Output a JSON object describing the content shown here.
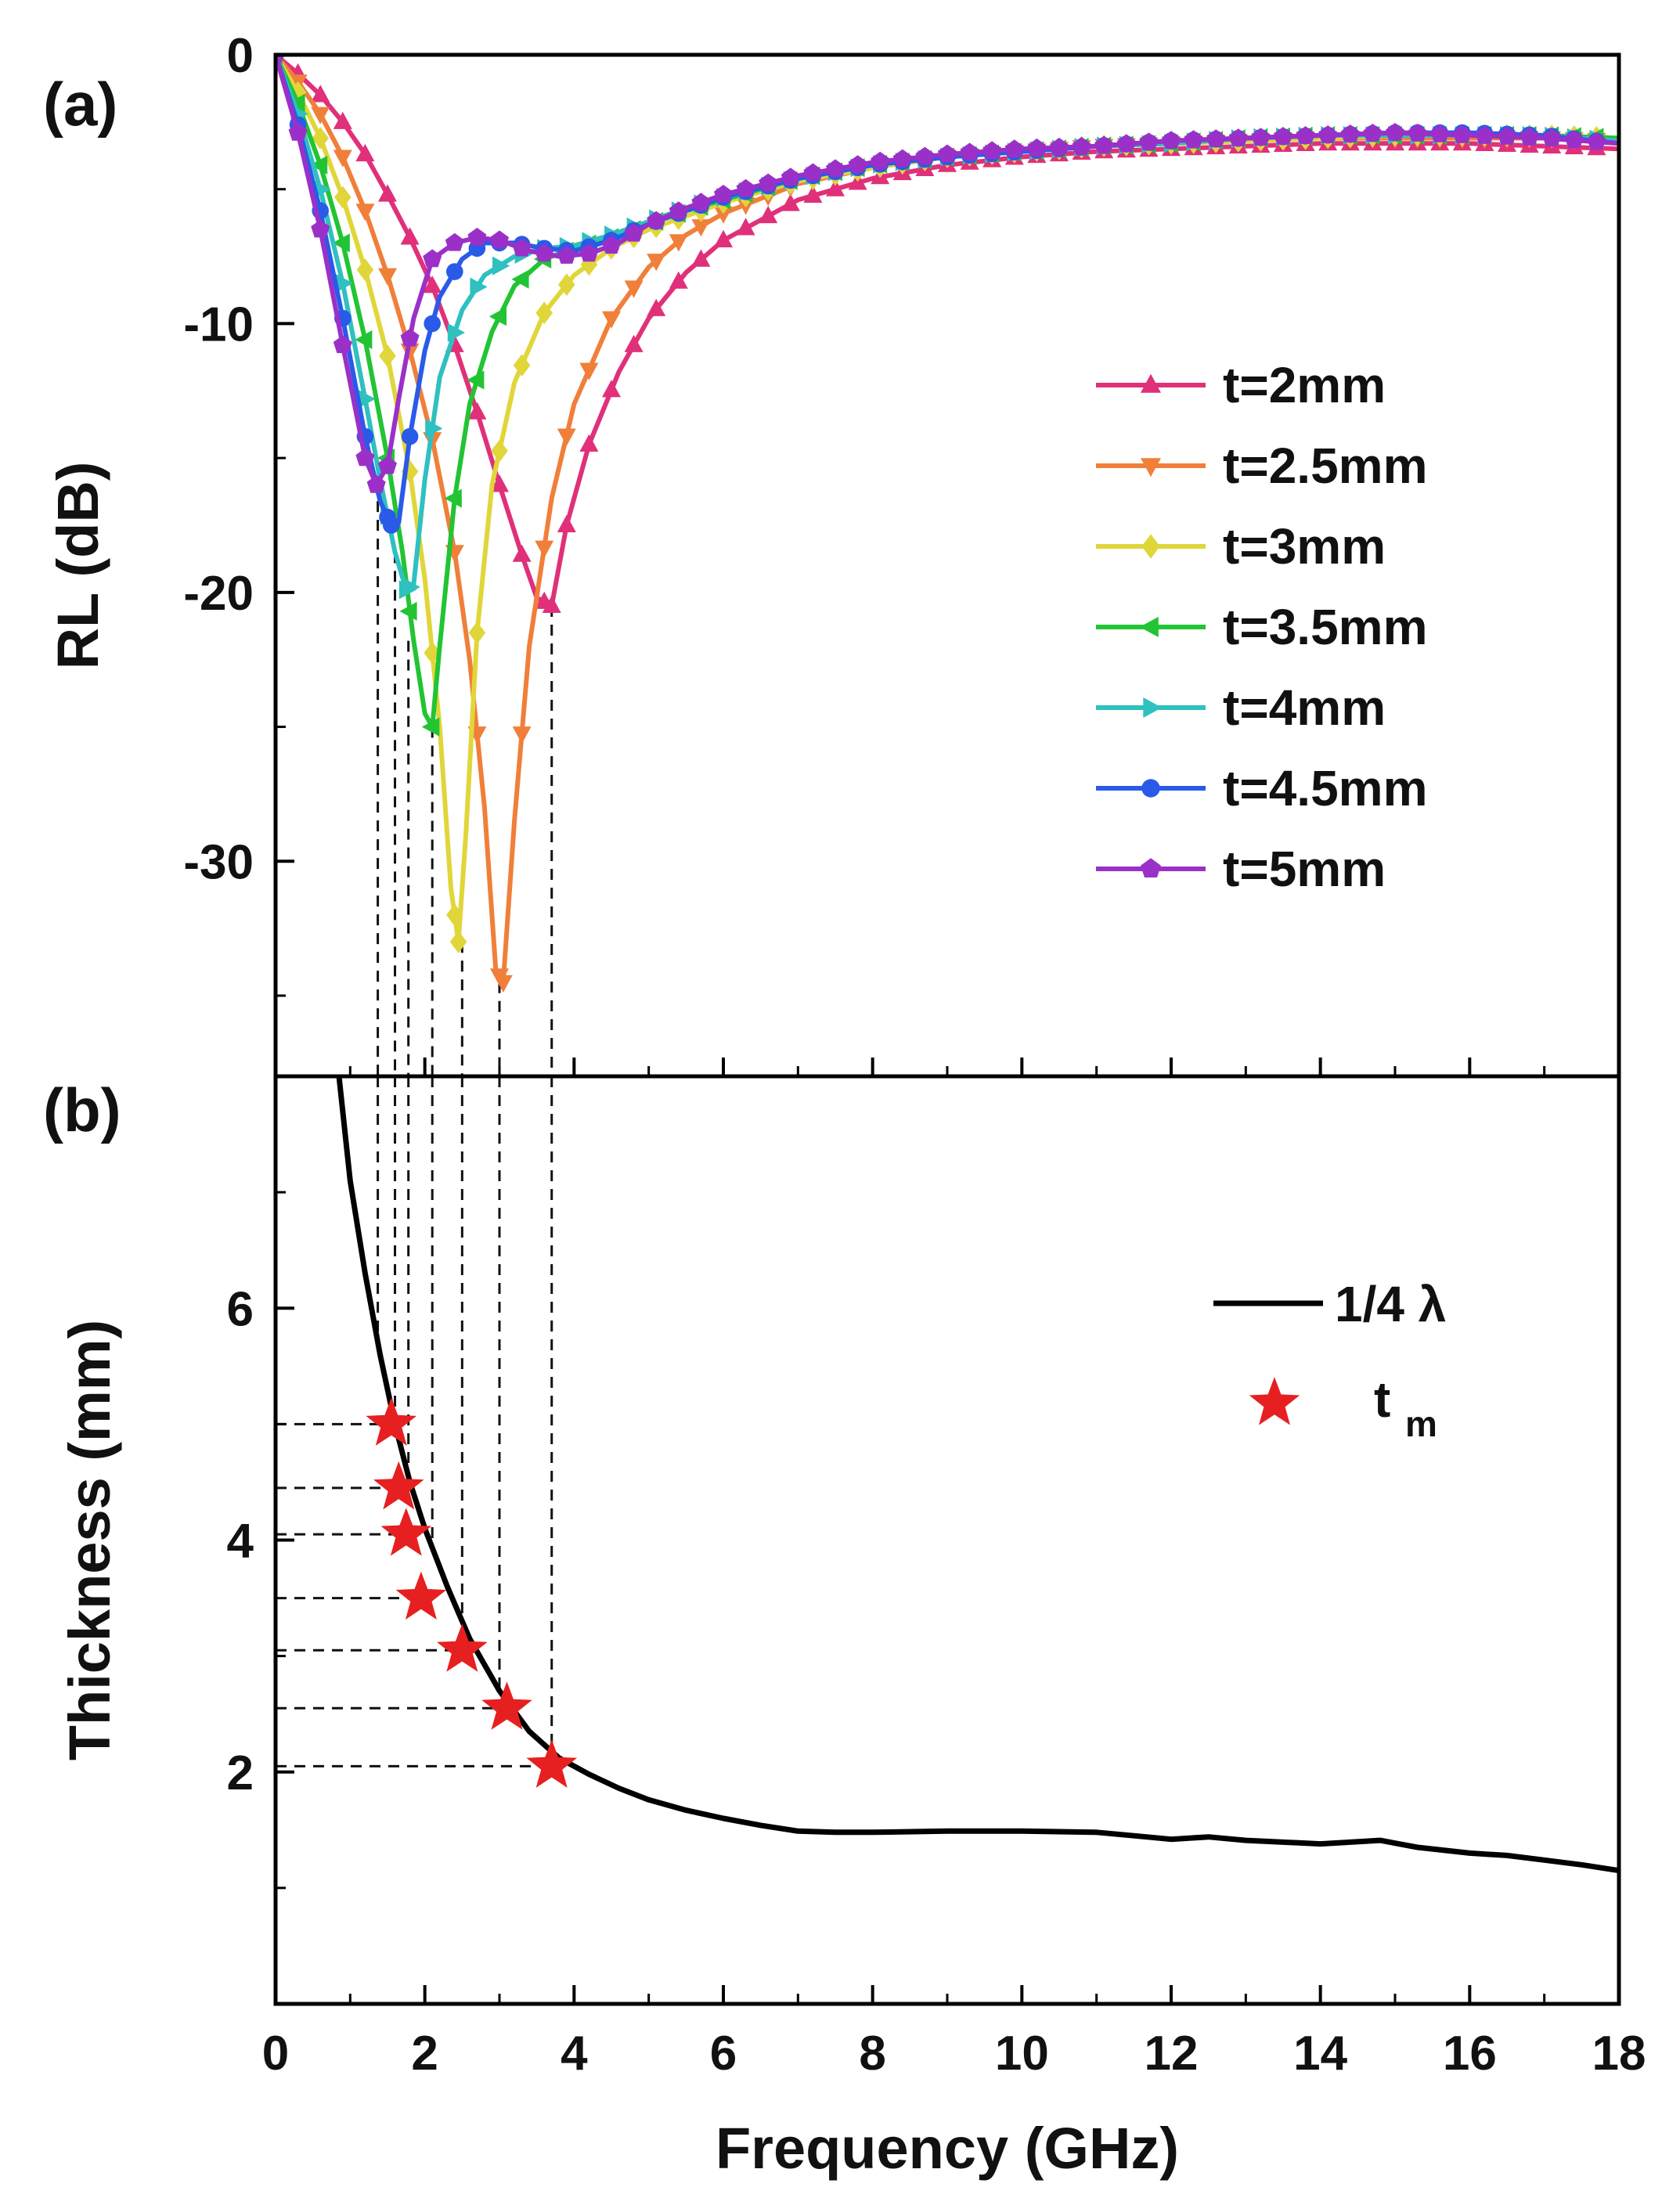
{
  "chart_data": [
    {
      "panel_label": "(a)",
      "type": "line",
      "ylabel": "RL (dB)",
      "xlim": [
        0,
        18
      ],
      "ylim": [
        -38,
        0
      ],
      "yticks": [
        0,
        -10,
        -20,
        -30
      ],
      "grid": false,
      "legend_position": "right-middle",
      "series": [
        {
          "name": "t=2mm",
          "color": "#e0307a",
          "marker": "triangle-up",
          "x": [
            0,
            0.3,
            0.6,
            0.9,
            1.2,
            1.5,
            1.8,
            2.1,
            2.4,
            2.7,
            3.0,
            3.3,
            3.5,
            3.7,
            3.9,
            4.2,
            4.6,
            5.0,
            5.5,
            6.0,
            7.0,
            8.0,
            9.0,
            10.0,
            11.0,
            12.0,
            13.0,
            14.0,
            15.0,
            16.0,
            17.0,
            18.0
          ],
          "y": [
            0,
            -0.7,
            -1.5,
            -2.5,
            -3.7,
            -5.2,
            -6.8,
            -8.6,
            -10.8,
            -13.3,
            -16.0,
            -18.6,
            -20.2,
            -20.5,
            -17.5,
            -14.5,
            -11.8,
            -9.8,
            -8.1,
            -6.9,
            -5.4,
            -4.6,
            -4.1,
            -3.8,
            -3.6,
            -3.5,
            -3.4,
            -3.3,
            -3.3,
            -3.3,
            -3.4,
            -3.5
          ]
        },
        {
          "name": "t=2.5mm",
          "color": "#f07f3a",
          "marker": "triangle-down",
          "x": [
            0,
            0.3,
            0.6,
            0.9,
            1.2,
            1.5,
            1.8,
            2.1,
            2.4,
            2.6,
            2.8,
            2.95,
            3.05,
            3.2,
            3.4,
            3.7,
            4.0,
            4.5,
            5.0,
            5.5,
            6.0,
            7.0,
            8.0,
            9.0,
            10.0,
            11.0,
            12.0,
            13.0,
            14.0,
            15.0,
            16.0,
            17.0,
            18.0
          ],
          "y": [
            0,
            -1.0,
            -2.2,
            -3.8,
            -5.8,
            -8.2,
            -11.0,
            -14.3,
            -18.5,
            -22.5,
            -28.0,
            -34.0,
            -34.5,
            -28.5,
            -22.0,
            -16.5,
            -13.0,
            -9.8,
            -7.9,
            -6.7,
            -5.9,
            -4.8,
            -4.2,
            -3.8,
            -3.6,
            -3.4,
            -3.3,
            -3.2,
            -3.1,
            -3.1,
            -3.1,
            -3.1,
            -3.2
          ]
        },
        {
          "name": "t=3mm",
          "color": "#e0d63a",
          "marker": "diamond",
          "x": [
            0,
            0.3,
            0.6,
            0.9,
            1.2,
            1.5,
            1.8,
            2.0,
            2.2,
            2.35,
            2.45,
            2.55,
            2.7,
            2.9,
            3.2,
            3.6,
            4.0,
            4.5,
            5.0,
            5.5,
            6.0,
            7.0,
            8.0,
            9.0,
            10.0,
            11.0,
            12.0,
            13.0,
            14.0,
            15.0,
            16.0,
            17.0,
            18.0
          ],
          "y": [
            0,
            -1.4,
            -3.1,
            -5.3,
            -8.0,
            -11.2,
            -15.5,
            -19.5,
            -25.0,
            -31.0,
            -33.0,
            -29.0,
            -21.5,
            -16.0,
            -12.2,
            -9.6,
            -8.2,
            -7.2,
            -6.5,
            -6.0,
            -5.5,
            -4.7,
            -4.2,
            -3.8,
            -3.6,
            -3.4,
            -3.3,
            -3.2,
            -3.1,
            -3.0,
            -3.0,
            -3.0,
            -3.1
          ]
        },
        {
          "name": "t=3.5mm",
          "color": "#22c434",
          "marker": "triangle-left",
          "x": [
            0,
            0.3,
            0.6,
            0.9,
            1.2,
            1.5,
            1.7,
            1.85,
            2.0,
            2.1,
            2.2,
            2.4,
            2.6,
            2.9,
            3.2,
            3.6,
            4.0,
            4.5,
            5.0,
            5.5,
            6.0,
            7.0,
            8.0,
            9.0,
            10.0,
            11.0,
            12.0,
            13.0,
            14.0,
            15.0,
            16.0,
            17.0,
            18.0
          ],
          "y": [
            0,
            -1.8,
            -4.1,
            -7.0,
            -10.6,
            -15.0,
            -18.5,
            -21.8,
            -24.5,
            -25.0,
            -22.0,
            -16.5,
            -13.0,
            -10.3,
            -8.6,
            -7.6,
            -7.2,
            -6.8,
            -6.3,
            -5.8,
            -5.4,
            -4.6,
            -4.1,
            -3.8,
            -3.6,
            -3.4,
            -3.3,
            -3.1,
            -3.0,
            -3.0,
            -3.0,
            -3.0,
            -3.1
          ]
        },
        {
          "name": "t=4mm",
          "color": "#2fc0c0",
          "marker": "triangle-right",
          "x": [
            0,
            0.3,
            0.6,
            0.9,
            1.2,
            1.4,
            1.6,
            1.75,
            1.85,
            2.0,
            2.2,
            2.5,
            2.8,
            3.2,
            3.6,
            4.0,
            4.5,
            5.0,
            5.5,
            6.0,
            7.0,
            8.0,
            9.0,
            10.0,
            11.0,
            12.0,
            13.0,
            14.0,
            15.0,
            16.0,
            17.0,
            18.0
          ],
          "y": [
            0,
            -2.2,
            -5.0,
            -8.5,
            -12.8,
            -15.8,
            -18.5,
            -19.9,
            -19.7,
            -15.8,
            -12.0,
            -9.5,
            -8.2,
            -7.5,
            -7.2,
            -7.1,
            -6.7,
            -6.2,
            -5.7,
            -5.3,
            -4.6,
            -4.1,
            -3.8,
            -3.6,
            -3.4,
            -3.3,
            -3.1,
            -3.0,
            -3.0,
            -3.0,
            -3.0,
            -3.2
          ]
        },
        {
          "name": "t=4.5mm",
          "color": "#2a5ae8",
          "marker": "circle",
          "x": [
            0,
            0.3,
            0.6,
            0.9,
            1.2,
            1.4,
            1.55,
            1.65,
            1.8,
            2.0,
            2.2,
            2.5,
            2.8,
            3.2,
            3.6,
            4.0,
            4.5,
            5.0,
            5.5,
            6.0,
            7.0,
            8.0,
            9.0,
            10.0,
            11.0,
            12.0,
            13.0,
            14.0,
            15.0,
            16.0,
            17.0,
            18.0
          ],
          "y": [
            0,
            -2.6,
            -5.8,
            -9.8,
            -14.2,
            -16.6,
            -17.5,
            -17.4,
            -14.2,
            -11.0,
            -9.0,
            -7.6,
            -7.0,
            -7.0,
            -7.2,
            -7.3,
            -6.9,
            -6.3,
            -5.8,
            -5.3,
            -4.6,
            -4.1,
            -3.8,
            -3.6,
            -3.4,
            -3.2,
            -3.1,
            -3.0,
            -2.9,
            -2.9,
            -3.0,
            -3.3
          ]
        },
        {
          "name": "t=5mm",
          "color": "#9b30c8",
          "marker": "pentagon",
          "x": [
            0,
            0.3,
            0.6,
            0.9,
            1.2,
            1.35,
            1.5,
            1.65,
            1.85,
            2.1,
            2.4,
            2.7,
            3.0,
            3.4,
            3.8,
            4.2,
            4.6,
            5.0,
            5.5,
            6.0,
            7.0,
            8.0,
            9.0,
            10.0,
            11.0,
            12.0,
            13.0,
            14.0,
            15.0,
            16.0,
            17.0,
            18.0
          ],
          "y": [
            0,
            -2.9,
            -6.5,
            -10.8,
            -15.0,
            -16.0,
            -15.3,
            -12.8,
            -9.8,
            -7.6,
            -7.0,
            -6.8,
            -6.9,
            -7.3,
            -7.5,
            -7.4,
            -7.0,
            -6.3,
            -5.7,
            -5.2,
            -4.5,
            -4.0,
            -3.7,
            -3.5,
            -3.4,
            -3.2,
            -3.1,
            -3.0,
            -2.9,
            -3.0,
            -3.1,
            -3.3
          ]
        }
      ],
      "guides": [
        1.37,
        1.6,
        1.78,
        2.1,
        2.5,
        3.0,
        3.7
      ]
    },
    {
      "panel_label": "(b)",
      "type": "line",
      "xlabel": "Frequency (GHz)",
      "ylabel": "Thickness (mm)",
      "xlim": [
        0,
        18
      ],
      "ylim": [
        0,
        8
      ],
      "xticks": [
        0,
        2,
        4,
        6,
        8,
        10,
        12,
        14,
        16,
        18
      ],
      "yticks": [
        2,
        4,
        6
      ],
      "grid": false,
      "legend_position": "right-middle",
      "series": [
        {
          "name": "1/4 λ",
          "color": "#000000",
          "x": [
            0.85,
            1.0,
            1.2,
            1.4,
            1.6,
            1.8,
            2.0,
            2.3,
            2.6,
            3.0,
            3.4,
            3.8,
            4.2,
            4.6,
            5.0,
            5.5,
            6.0,
            6.5,
            7.0,
            7.5,
            8.0,
            9.0,
            10.0,
            11.0,
            11.5,
            12.0,
            12.5,
            13.0,
            14.0,
            14.8,
            15.3,
            16.0,
            16.5,
            17.0,
            17.5,
            18.0
          ],
          "y": [
            8.0,
            7.1,
            6.3,
            5.6,
            5.0,
            4.5,
            4.1,
            3.6,
            3.15,
            2.7,
            2.35,
            2.12,
            1.98,
            1.86,
            1.76,
            1.67,
            1.6,
            1.54,
            1.49,
            1.48,
            1.48,
            1.49,
            1.49,
            1.48,
            1.45,
            1.42,
            1.44,
            1.41,
            1.38,
            1.41,
            1.35,
            1.3,
            1.28,
            1.24,
            1.2,
            1.15
          ]
        },
        {
          "name": "t",
          "name_sub": "m",
          "color": "#e62020",
          "marker": "star",
          "x": [
            1.55,
            1.65,
            1.75,
            1.95,
            2.5,
            3.1,
            3.7
          ],
          "y": [
            5.0,
            4.45,
            4.05,
            3.5,
            3.05,
            2.55,
            2.05
          ]
        }
      ]
    }
  ]
}
